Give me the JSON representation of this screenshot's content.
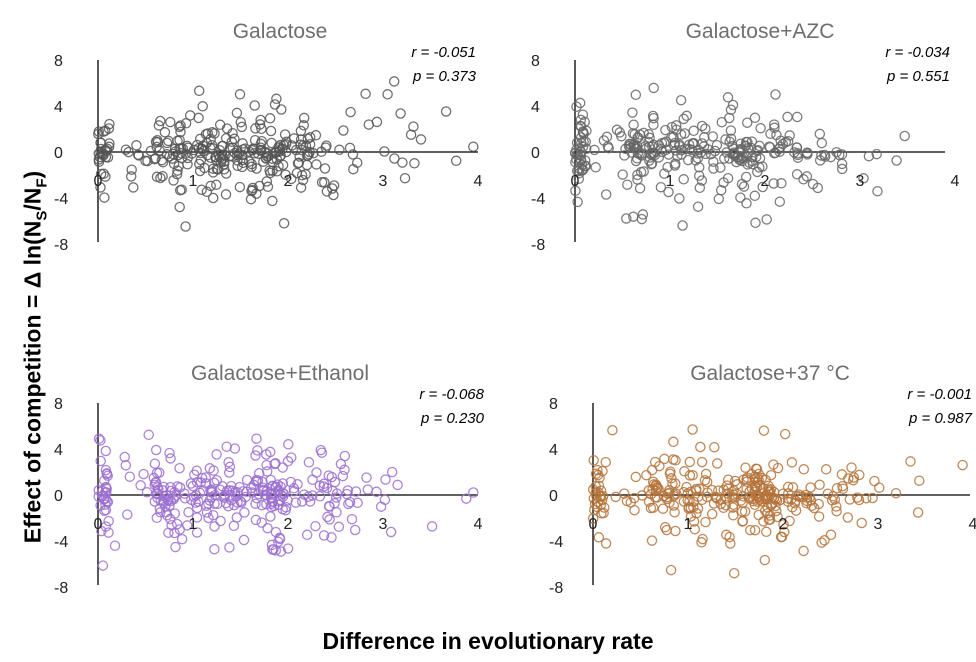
{
  "figure": {
    "ylabel_prefix": "Effect of competition =  Δ ln(N",
    "ylabel_sub1": "S",
    "ylabel_mid": "/N",
    "ylabel_sub2": "F",
    "ylabel_suffix": ")",
    "xlabel": "Difference in evolutionary rate"
  },
  "chart_data": [
    {
      "type": "scatter",
      "title": "Galactose",
      "r_label": "r = -0.051",
      "p_label": "p = 0.373",
      "color": "#555555",
      "xlim": [
        0,
        4
      ],
      "ylim": [
        -8,
        8
      ],
      "xticks": [
        "0",
        "1",
        "2",
        "3",
        "4"
      ],
      "yticks": [
        "8",
        "4",
        "0",
        "-4",
        "-8"
      ],
      "n_points": 310,
      "seed": 11
    },
    {
      "type": "scatter",
      "title": "Galactose+AZC",
      "r_label": "r = -0.034",
      "p_label": "p = 0.551",
      "color": "#666666",
      "xlim": [
        0,
        4
      ],
      "ylim": [
        -8,
        8
      ],
      "xticks": [
        "0",
        "1",
        "2",
        "3",
        "4"
      ],
      "yticks": [
        "8",
        "4",
        "0",
        "-4",
        "-8"
      ],
      "n_points": 310,
      "seed": 23
    },
    {
      "type": "scatter",
      "title": "Galactose+Ethanol",
      "r_label": "r = -0.068",
      "p_label": "p = 0.230",
      "color": "#9b6fd0",
      "xlim": [
        0,
        4
      ],
      "ylim": [
        -8,
        8
      ],
      "xticks": [
        "0",
        "1",
        "2",
        "3",
        "4"
      ],
      "yticks": [
        "8",
        "4",
        "0",
        "-4",
        "-8"
      ],
      "n_points": 310,
      "seed": 37
    },
    {
      "type": "scatter",
      "title": "Galactose+37 °C",
      "r_label": "r = -0.001",
      "p_label": "p = 0.987",
      "color": "#b5733a",
      "xlim": [
        0,
        4
      ],
      "ylim": [
        -8,
        8
      ],
      "xticks": [
        "0",
        "1",
        "2",
        "3",
        "4"
      ],
      "yticks": [
        "8",
        "4",
        "0",
        "-4",
        "-8"
      ],
      "n_points": 310,
      "seed": 53
    }
  ]
}
